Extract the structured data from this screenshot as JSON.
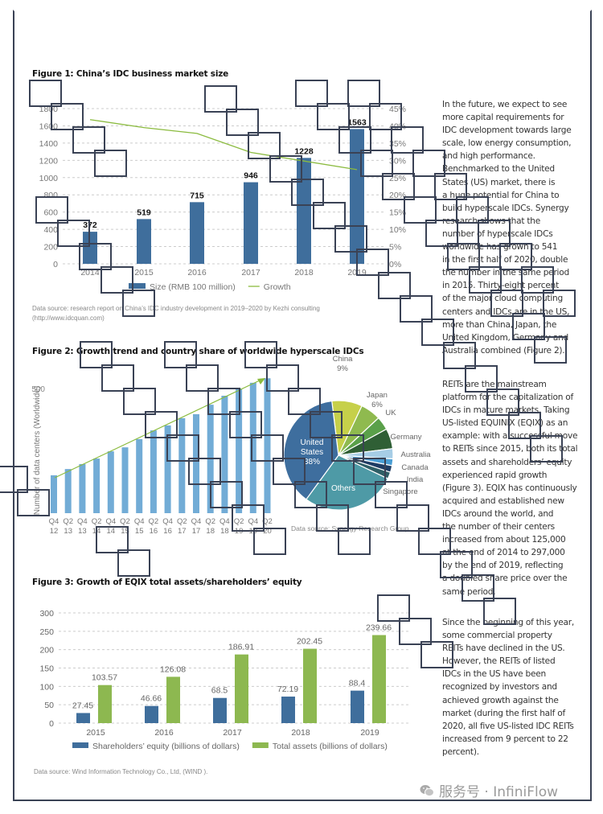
{
  "figure1": {
    "title": "Figure 1: China’s IDC business market size",
    "source_line1": "Data source: research report on China’s IDC industry development in 2019–2020 by Kezhi consulting",
    "source_line2": "(http://www.idcquan.com)"
  },
  "figure2": {
    "title": "Figure 2: Growth trend and country share of worldwide hyperscale IDCs",
    "source": "Data source: Synergy Research Group"
  },
  "figure3": {
    "title": "Figure 3: Growth of EQIX total assets/shareholders’ equity",
    "source": "Data source: Wind Information Technology Co., Ltd, (WIND )."
  },
  "text": {
    "para1": [
      "In the future, we expect to see",
      "more capital requirements for",
      "IDC development towards large",
      "scale, low energy consumption,",
      "and high performance.",
      "Benchmarked to the United",
      "States (US) market, there is",
      "a huge potential for China to",
      "build hyperscale IDCs. Synergy",
      "research shows that the",
      "number of hyperscale IDCs",
      "worldwide has grown to 541",
      "in the first half of 2020, double",
      "the number in the same period",
      "in 2015. Thirty-eight percent",
      "of the major cloud computing",
      "centers and IDCs are in the US,",
      "more than China, Japan, the",
      "United Kingdom, Germany and",
      "Australia combined (Figure 2)."
    ],
    "para2": [
      "REITs are the mainstream",
      "platform for the capitalization of",
      "IDCs in mature markets. Taking",
      "US-listed EQUINIX (EQIX) as an",
      "example: with a successful move",
      "to REITs since 2015, both its total",
      "assets and shareholders’ equity",
      "experienced rapid growth",
      "(Figure 3). EQIX has continuously",
      "acquired and established new",
      "IDCs around the world, and",
      "the number of their centers",
      "increased from about 125,000",
      "at the end of 2014 to 297,000",
      "by the end of 2019, reflecting",
      "a doubled share price over the",
      "same period."
    ],
    "para3": [
      "Since the beginning of this year,",
      "some commercial property",
      "REITs have declined in the US.",
      "However, the REITs of listed",
      "IDCs in the US have been",
      "recognized by investors and",
      "achieved growth against the",
      "market (during the first half of",
      "2020, all five US-listed IDC REITs",
      "increased from 9 percent to 22",
      "percent)."
    ]
  },
  "watermark": {
    "text": "服务号 · InfiniFlow",
    "icon": "wechat-icon"
  },
  "chart_data": [
    {
      "type": "bar",
      "title": "Figure 1: China’s IDC business market size",
      "categories": [
        "2014",
        "2015",
        "2016",
        "2017",
        "2018",
        "2019"
      ],
      "series": [
        {
          "name": "Size (RMB 100 million)",
          "type": "bar",
          "axis": "left",
          "color": "#3f6e9c",
          "values": [
            372,
            519,
            715,
            946,
            1228,
            1563
          ]
        },
        {
          "name": "Growth",
          "type": "line",
          "axis": "right",
          "color": "#8bbb3f",
          "values": [
            41.8,
            39.5,
            37.8,
            32.3,
            29.8,
            27.3
          ]
        }
      ],
      "y_left": {
        "ticks": [
          0,
          200,
          400,
          600,
          800,
          1000,
          1200,
          1400,
          1600,
          1800
        ],
        "range": [
          0,
          1800
        ]
      },
      "y_right": {
        "ticks": [
          "0%",
          "5%",
          "10%",
          "15%",
          "20%",
          "25%",
          "30%",
          "35%",
          "40%",
          "45%"
        ],
        "range": [
          0,
          45
        ]
      },
      "grid": true,
      "legend": "bottom"
    },
    {
      "type": "bar",
      "ylabel": "Number of data centers (Worldwide)",
      "categories": [
        [
          "Q4",
          "12"
        ],
        [
          "Q2",
          "13"
        ],
        [
          "Q4",
          "13"
        ],
        [
          "Q2",
          "14"
        ],
        [
          "Q4",
          "14"
        ],
        [
          "Q2",
          "15"
        ],
        [
          "Q4",
          "15"
        ],
        [
          "Q2",
          "16"
        ],
        [
          "Q4",
          "16"
        ],
        [
          "Q2",
          "17"
        ],
        [
          "Q4",
          "17"
        ],
        [
          "Q2",
          "18"
        ],
        [
          "Q4",
          "18"
        ],
        [
          "Q2",
          "19"
        ],
        [
          "Q4",
          "19"
        ],
        [
          "Q2",
          "20"
        ]
      ],
      "values": [
        152,
        177,
        197,
        219,
        248,
        264,
        297,
        332,
        352,
        381,
        397,
        435,
        471,
        500,
        523,
        541
      ],
      "y_ticks": [
        500
      ],
      "color": "#72acd6",
      "trend_arrow": true,
      "grid": false
    },
    {
      "type": "pie",
      "slices": [
        {
          "label": "China",
          "pct_label": "9%",
          "value": 9,
          "color": "#c6d04a"
        },
        {
          "label": "Japan",
          "pct_label": "6%",
          "value": 6,
          "color": "#8fba4f"
        },
        {
          "label": "UK",
          "value": 4,
          "color": "#5aa04a"
        },
        {
          "label": "Germany",
          "value": 6,
          "color": "#2f5f35"
        },
        {
          "label": "Australia",
          "value": 3,
          "color": "#a6cde6"
        },
        {
          "label": "Canada",
          "value": 2,
          "color": "#4a9ed4"
        },
        {
          "label": "India",
          "value": 2,
          "color": "#1f3d64"
        },
        {
          "label": "Singapore",
          "value": 2,
          "color": "#2f5f66"
        },
        {
          "label": "Others",
          "value": 28,
          "color": "#4e9aa6"
        },
        {
          "label": "United States",
          "label_lines": [
            "United",
            "States",
            "38%"
          ],
          "pct_label": "38%",
          "value": 38,
          "color": "#3e6e9e"
        }
      ]
    },
    {
      "type": "bar",
      "title": "Figure 3: Growth of EQIX total assets/shareholders’ equity",
      "categories": [
        "2015",
        "2016",
        "2017",
        "2018",
        "2019"
      ],
      "series": [
        {
          "name": "Shareholders’ equity (billions of dollars)",
          "color": "#3f6e9c",
          "values": [
            27.45,
            46.66,
            68.5,
            72.19,
            88.4
          ]
        },
        {
          "name": "Total assets (billions of dollars)",
          "color": "#8db850",
          "values": [
            103.57,
            126.08,
            186.91,
            202.45,
            239.66
          ]
        }
      ],
      "y_ticks": [
        0,
        50,
        100,
        150,
        200,
        250,
        300
      ],
      "ylim": [
        0,
        300
      ],
      "grid": true,
      "legend": "bottom"
    }
  ]
}
